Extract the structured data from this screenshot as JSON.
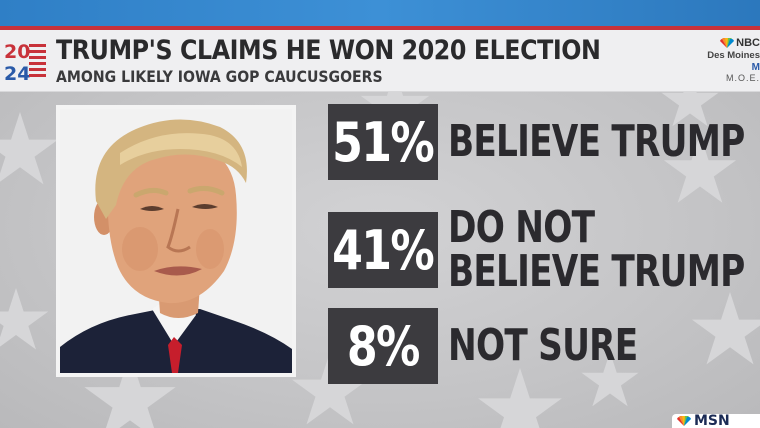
{
  "header": {
    "logo_year_top": "20",
    "logo_year_bottom": "24",
    "headline": "TRUMP'S CLAIMS HE WON 2020 ELECTION",
    "subhead": "AMONG LIKELY IOWA GOP CAUCUSGOERS"
  },
  "source": {
    "network": "NBC",
    "name": "Des Moines",
    "suffix": "M",
    "moe": "M.O.E."
  },
  "results": [
    {
      "percent": "51%",
      "lines": [
        "BELIEVE TRUMP"
      ]
    },
    {
      "percent": "41%",
      "lines": [
        "DO NOT",
        "BELIEVE TRUMP"
      ]
    },
    {
      "percent": "8%",
      "lines": [
        "NOT SURE"
      ]
    }
  ],
  "bug": {
    "text": "MSN"
  },
  "colors": {
    "top_strip": "#3d90d6",
    "red_rule": "#c8323a",
    "header_bg": "#efeff1",
    "percent_box": "#3c3b3f",
    "label_text": "#2b2a2e",
    "logo_blue": "#2a5aa8",
    "logo_red": "#c8323a"
  },
  "icons": {
    "logo": "2024-flag-logo",
    "source": "nbc-peacock-icon",
    "background": "star-pattern"
  }
}
